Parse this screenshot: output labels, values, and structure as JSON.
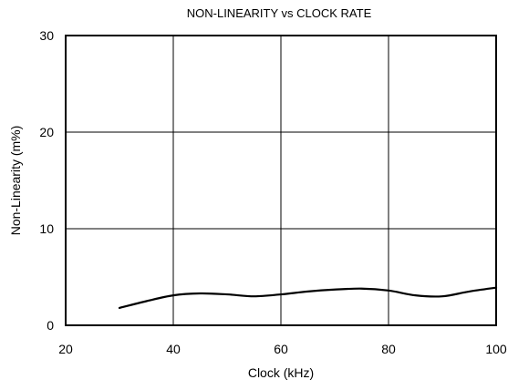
{
  "chart_data": {
    "type": "line",
    "title": "NON-LINEARITY vs CLOCK RATE",
    "xlabel": "Clock (kHz)",
    "ylabel": "Non-Linearity (m%)",
    "xlim": [
      20,
      100
    ],
    "ylim": [
      0,
      30
    ],
    "xticks": [
      "20",
      "40",
      "60",
      "80",
      "100"
    ],
    "yticks": [
      "0",
      "10",
      "20",
      "30"
    ],
    "grid": true,
    "series": [
      {
        "x": [
          30,
          35,
          40,
          45,
          50,
          55,
          60,
          65,
          70,
          75,
          80,
          85,
          90,
          95,
          100
        ],
        "y": [
          1.8,
          2.5,
          3.1,
          3.3,
          3.2,
          3.0,
          3.2,
          3.5,
          3.7,
          3.8,
          3.6,
          3.1,
          3.0,
          3.5,
          3.9
        ]
      }
    ]
  }
}
